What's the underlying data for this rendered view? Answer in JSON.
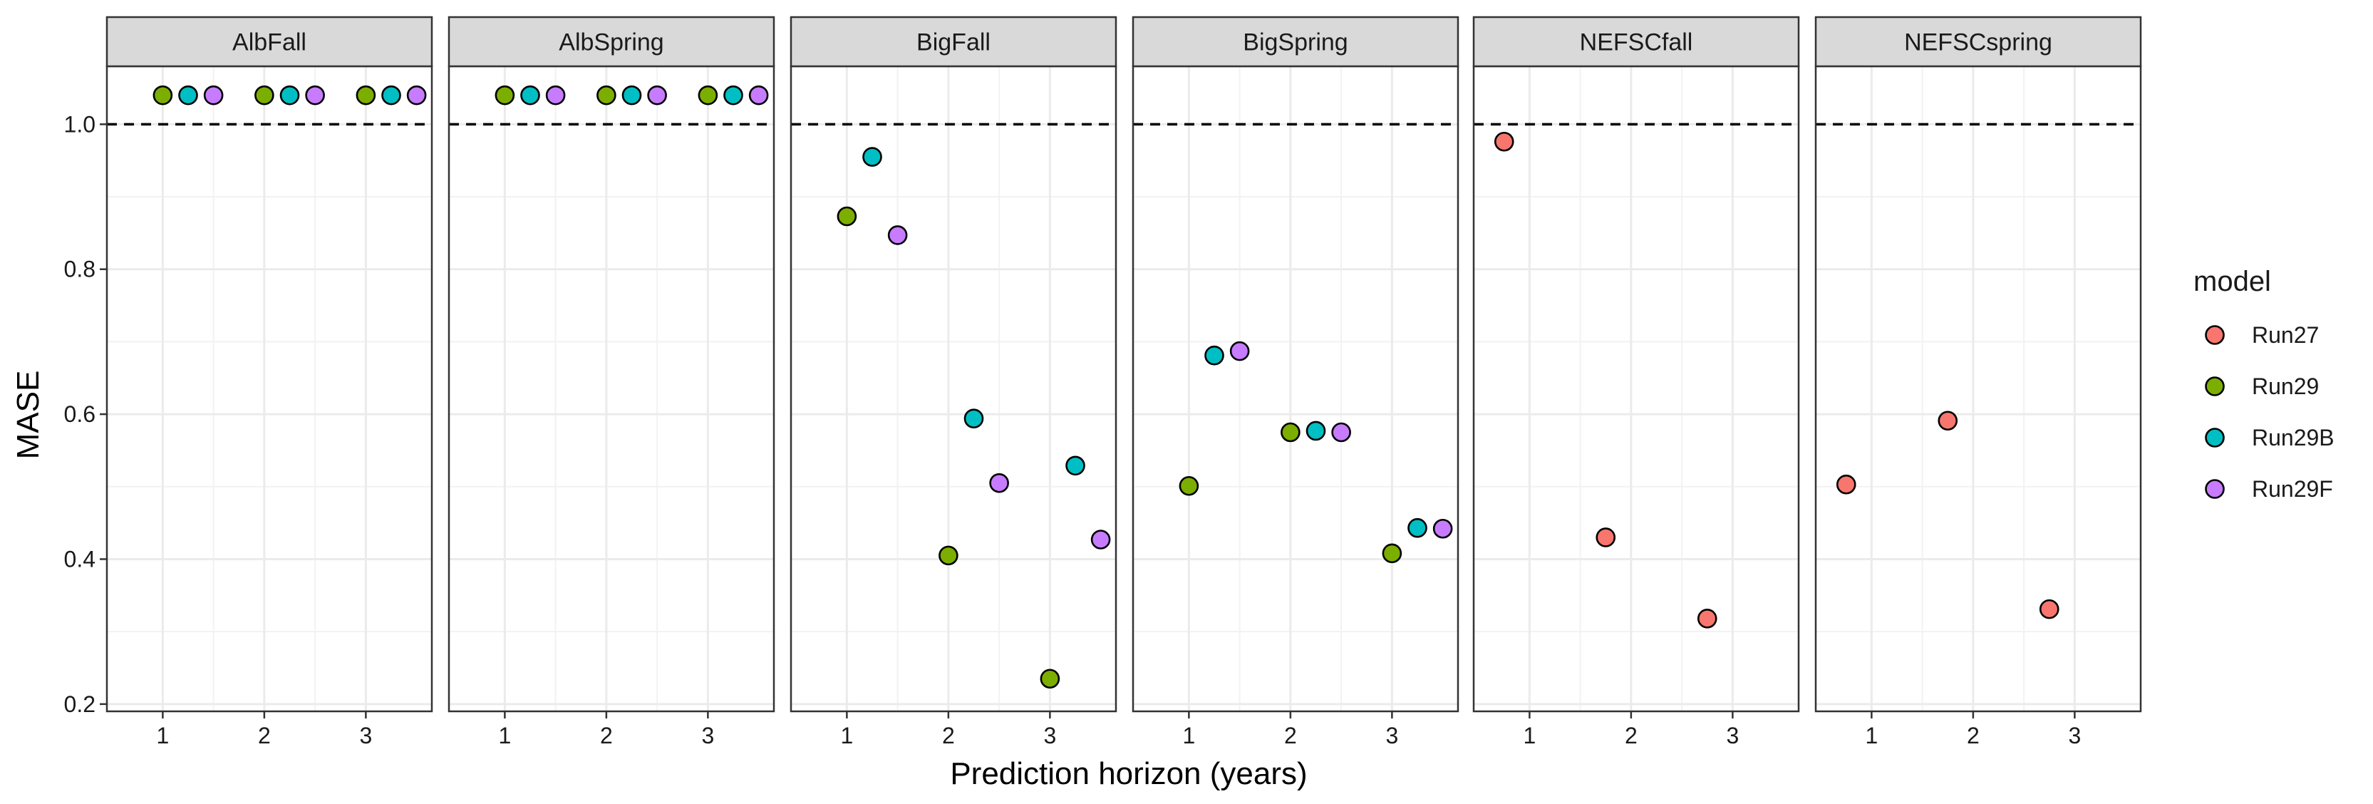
{
  "chart_data": {
    "type": "scatter",
    "xlabel": "Prediction horizon (years)",
    "ylabel": "MASE",
    "x_ticks": [
      1,
      2,
      3
    ],
    "y_ticks": [
      0.2,
      0.4,
      0.6,
      0.8,
      1.0
    ],
    "y_tick_labels": [
      "0.2",
      "0.4",
      "0.6",
      "0.8",
      "1.0"
    ],
    "xlim": [
      0.45,
      3.65
    ],
    "ylim": [
      0.19,
      1.08
    ],
    "reference_line": 1.0,
    "grid": true,
    "dodge": 0.25,
    "legend": {
      "title": "model",
      "placement": "right",
      "entries": [
        {
          "name": "Run27",
          "color": "#F8766D"
        },
        {
          "name": "Run29",
          "color": "#7CAE00"
        },
        {
          "name": "Run29B",
          "color": "#00BFC4"
        },
        {
          "name": "Run29F",
          "color": "#C77CFF"
        }
      ]
    },
    "panels": [
      {
        "name": "AlbFall",
        "points": [
          {
            "model": "Run29",
            "x": 1,
            "y": 1.04
          },
          {
            "model": "Run29B",
            "x": 1,
            "y": 1.04
          },
          {
            "model": "Run29F",
            "x": 1,
            "y": 1.04
          },
          {
            "model": "Run29",
            "x": 2,
            "y": 1.04
          },
          {
            "model": "Run29B",
            "x": 2,
            "y": 1.04
          },
          {
            "model": "Run29F",
            "x": 2,
            "y": 1.04
          },
          {
            "model": "Run29",
            "x": 3,
            "y": 1.04
          },
          {
            "model": "Run29B",
            "x": 3,
            "y": 1.04
          },
          {
            "model": "Run29F",
            "x": 3,
            "y": 1.04
          }
        ]
      },
      {
        "name": "AlbSpring",
        "points": [
          {
            "model": "Run29",
            "x": 1,
            "y": 1.04
          },
          {
            "model": "Run29B",
            "x": 1,
            "y": 1.04
          },
          {
            "model": "Run29F",
            "x": 1,
            "y": 1.04
          },
          {
            "model": "Run29",
            "x": 2,
            "y": 1.04
          },
          {
            "model": "Run29B",
            "x": 2,
            "y": 1.04
          },
          {
            "model": "Run29F",
            "x": 2,
            "y": 1.04
          },
          {
            "model": "Run29",
            "x": 3,
            "y": 1.04
          },
          {
            "model": "Run29B",
            "x": 3,
            "y": 1.04
          },
          {
            "model": "Run29F",
            "x": 3,
            "y": 1.04
          }
        ]
      },
      {
        "name": "BigFall",
        "points": [
          {
            "model": "Run29",
            "x": 1,
            "y": 0.873
          },
          {
            "model": "Run29B",
            "x": 1,
            "y": 0.955
          },
          {
            "model": "Run29F",
            "x": 1,
            "y": 0.847
          },
          {
            "model": "Run29",
            "x": 2,
            "y": 0.405
          },
          {
            "model": "Run29B",
            "x": 2,
            "y": 0.594
          },
          {
            "model": "Run29F",
            "x": 2,
            "y": 0.505
          },
          {
            "model": "Run29",
            "x": 3,
            "y": 0.235
          },
          {
            "model": "Run29B",
            "x": 3,
            "y": 0.529
          },
          {
            "model": "Run29F",
            "x": 3,
            "y": 0.427
          }
        ]
      },
      {
        "name": "BigSpring",
        "points": [
          {
            "model": "Run29",
            "x": 1,
            "y": 0.501
          },
          {
            "model": "Run29B",
            "x": 1,
            "y": 0.681
          },
          {
            "model": "Run29F",
            "x": 1,
            "y": 0.687
          },
          {
            "model": "Run29",
            "x": 2,
            "y": 0.575
          },
          {
            "model": "Run29B",
            "x": 2,
            "y": 0.577
          },
          {
            "model": "Run29F",
            "x": 2,
            "y": 0.575
          },
          {
            "model": "Run29",
            "x": 3,
            "y": 0.408
          },
          {
            "model": "Run29B",
            "x": 3,
            "y": 0.443
          },
          {
            "model": "Run29F",
            "x": 3,
            "y": 0.442
          }
        ]
      },
      {
        "name": "NEFSCfall",
        "points": [
          {
            "model": "Run27",
            "x": 1,
            "y": 0.976
          },
          {
            "model": "Run27",
            "x": 2,
            "y": 0.43
          },
          {
            "model": "Run27",
            "x": 3,
            "y": 0.318
          }
        ]
      },
      {
        "name": "NEFSCspring",
        "points": [
          {
            "model": "Run27",
            "x": 1,
            "y": 0.503
          },
          {
            "model": "Run27",
            "x": 2,
            "y": 0.591
          },
          {
            "model": "Run27",
            "x": 3,
            "y": 0.331
          }
        ]
      }
    ]
  }
}
